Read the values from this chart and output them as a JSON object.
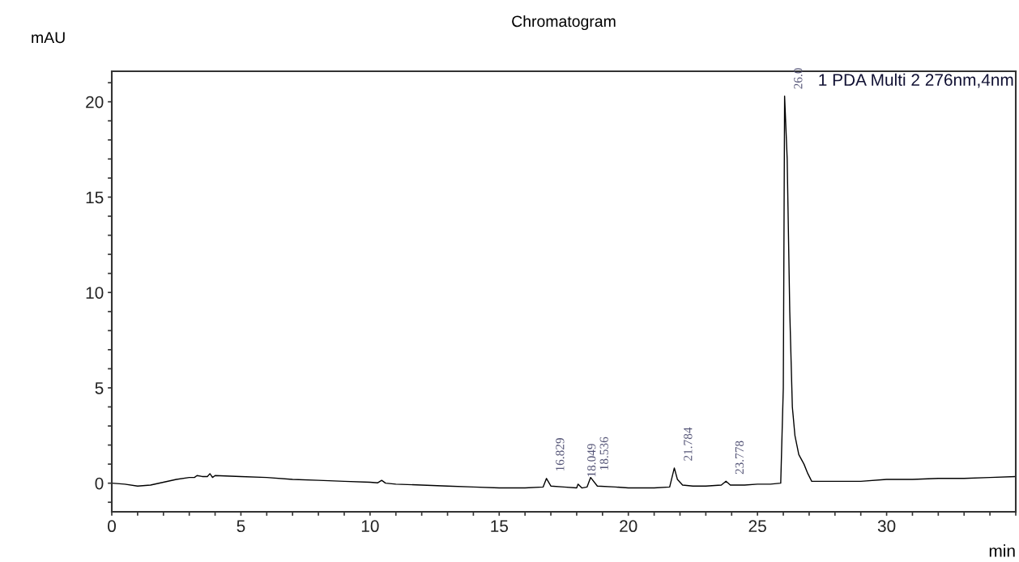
{
  "chart_data": {
    "type": "line",
    "title": "Chromatogram",
    "xlabel": "min",
    "ylabel": "mAU",
    "series": [
      {
        "color": "#000000",
        "x": [
          0,
          0.5,
          1,
          1.5,
          2,
          2.5,
          3,
          3.2,
          3.3,
          3.5,
          3.7,
          3.8,
          3.9,
          4,
          5,
          6,
          7,
          8,
          9,
          10,
          10.3,
          10.45,
          10.6,
          11,
          12,
          13,
          14,
          15,
          16,
          16.7,
          16.83,
          17.0,
          17.5,
          18.0,
          18.05,
          18.2,
          18.4,
          18.54,
          18.8,
          19.5,
          20,
          21,
          21.6,
          21.78,
          21.9,
          22.1,
          22.5,
          23,
          23.6,
          23.78,
          23.95,
          24.5,
          25,
          25.5,
          25.9,
          26.0,
          26.05,
          26.15,
          26.25,
          26.35,
          26.45,
          26.6,
          26.8,
          26.95,
          27.1,
          28,
          29,
          30,
          31,
          32,
          33,
          34,
          35
        ],
        "values": [
          0,
          -0.05,
          -0.15,
          -0.1,
          0.05,
          0.2,
          0.3,
          0.3,
          0.4,
          0.35,
          0.35,
          0.5,
          0.3,
          0.4,
          0.35,
          0.3,
          0.2,
          0.15,
          0.1,
          0.05,
          0.02,
          0.15,
          0.0,
          -0.05,
          -0.1,
          -0.15,
          -0.2,
          -0.25,
          -0.25,
          -0.2,
          0.25,
          -0.15,
          -0.2,
          -0.25,
          -0.05,
          -0.25,
          -0.2,
          0.3,
          -0.15,
          -0.2,
          -0.25,
          -0.25,
          -0.2,
          0.8,
          0.2,
          -0.1,
          -0.15,
          -0.15,
          -0.1,
          0.1,
          -0.1,
          -0.1,
          -0.05,
          -0.05,
          0.0,
          5.0,
          20.3,
          17.0,
          9.0,
          4.0,
          2.5,
          1.5,
          1.0,
          0.5,
          0.1,
          0.1,
          0.1,
          0.2,
          0.2,
          0.25,
          0.25,
          0.3,
          0.35
        ]
      }
    ],
    "xlim": [
      0,
      35
    ],
    "ylim": [
      -1.5,
      21.6
    ],
    "xticks": [
      0,
      {
        "value": 1,
        "label": null
      },
      {
        "value": 2,
        "label": null
      },
      {
        "value": 3,
        "label": null
      },
      {
        "value": 4,
        "label": null
      },
      5,
      {
        "value": 6,
        "label": null
      },
      {
        "value": 7,
        "label": null
      },
      {
        "value": 8,
        "label": null
      },
      {
        "value": 9,
        "label": null
      },
      10,
      {
        "value": 11,
        "label": null
      },
      {
        "value": 12,
        "label": null
      },
      {
        "value": 13,
        "label": null
      },
      {
        "value": 14,
        "label": null
      },
      15,
      {
        "value": 16,
        "label": null
      },
      {
        "value": 17,
        "label": null
      },
      {
        "value": 18,
        "label": null
      },
      {
        "value": 19,
        "label": null
      },
      20,
      {
        "value": 21,
        "label": null
      },
      {
        "value": 22,
        "label": null
      },
      {
        "value": 23,
        "label": null
      },
      {
        "value": 24,
        "label": null
      },
      25,
      {
        "value": 26,
        "label": null
      },
      {
        "value": 27,
        "label": null
      },
      {
        "value": 28,
        "label": null
      },
      {
        "value": 29,
        "label": null
      },
      30,
      {
        "value": 31,
        "label": null
      },
      {
        "value": 32,
        "label": null
      },
      {
        "value": 33,
        "label": null
      },
      {
        "value": 34,
        "label": null
      },
      {
        "value": 35,
        "label": null
      }
    ],
    "yticks": [
      {
        "value": -1,
        "label": null
      },
      0,
      {
        "value": 1,
        "label": null
      },
      {
        "value": 2,
        "label": null
      },
      {
        "value": 3,
        "label": null
      },
      {
        "value": 4,
        "label": null
      },
      5,
      {
        "value": 6,
        "label": null
      },
      {
        "value": 7,
        "label": null
      },
      {
        "value": 8,
        "label": null
      },
      {
        "value": 9,
        "label": null
      },
      10,
      {
        "value": 11,
        "label": null
      },
      {
        "value": 12,
        "label": null
      },
      {
        "value": 13,
        "label": null
      },
      {
        "value": 14,
        "label": null
      },
      15,
      {
        "value": 16,
        "label": null
      },
      {
        "value": 17,
        "label": null
      },
      {
        "value": 18,
        "label": null
      },
      {
        "value": 19,
        "label": null
      },
      20,
      {
        "value": 21,
        "label": null
      }
    ],
    "grid": false,
    "legend": false,
    "line_style": "solid",
    "marker": "none",
    "annotations": [
      "1 PDA Multi 2 276nm,4nm",
      {
        "text": "16.829",
        "x": 16.829,
        "y": 0.25
      },
      {
        "text": "18.049",
        "x": 18.049,
        "y": -0.05
      },
      {
        "text": "18.536",
        "x": 18.536,
        "y": 0.3
      },
      {
        "text": "21.784",
        "x": 21.784,
        "y": 0.8
      },
      {
        "text": "23.778",
        "x": 23.778,
        "y": 0.1
      },
      {
        "text": "26.0",
        "x": 26.05,
        "y": 20.3
      }
    ]
  }
}
